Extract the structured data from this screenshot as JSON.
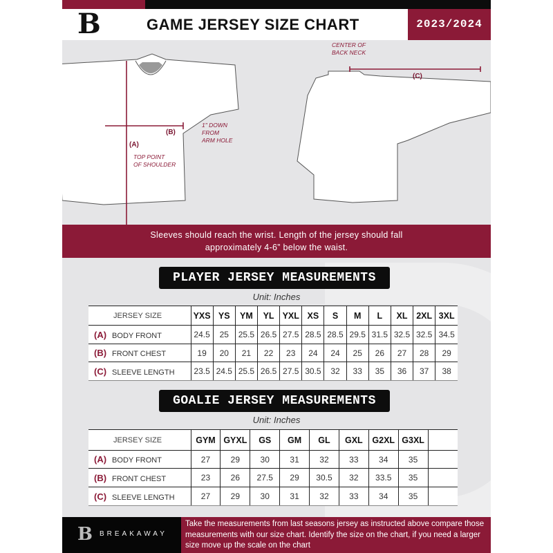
{
  "header": {
    "title": "GAME JERSEY SIZE CHART",
    "season": "2023/2024",
    "logo_letter": "B"
  },
  "diagram": {
    "center_back_neck": "CENTER OF\nBACK NECK",
    "label_a": "(A)",
    "label_b": "(B)",
    "label_c": "(C)",
    "top_point": "TOP POINT\nOF SHOULDER",
    "one_inch": "1\" DOWN\nFROM\nARM HOLE"
  },
  "notice": {
    "line1": "Sleeves should reach the wrist. Length of the jersey should fall",
    "line2": "approximately 4-6” below the waist."
  },
  "player": {
    "title": "PLAYER JERSEY MEASUREMENTS",
    "unit": "Unit: Inches",
    "size_header": "JERSEY SIZE",
    "sizes": [
      "YXS",
      "YS",
      "YM",
      "YL",
      "YXL",
      "XS",
      "S",
      "M",
      "L",
      "XL",
      "2XL",
      "3XL"
    ],
    "rows": [
      {
        "key": "(A)",
        "label": "BODY FRONT",
        "values": [
          "24.5",
          "25",
          "25.5",
          "26.5",
          "27.5",
          "28.5",
          "28.5",
          "29.5",
          "31.5",
          "32.5",
          "32.5",
          "34.5"
        ]
      },
      {
        "key": "(B)",
        "label": "FRONT CHEST",
        "values": [
          "19",
          "20",
          "21",
          "22",
          "23",
          "24",
          "24",
          "25",
          "26",
          "27",
          "28",
          "29"
        ]
      },
      {
        "key": "(C)",
        "label": "SLEEVE LENGTH",
        "values": [
          "23.5",
          "24.5",
          "25.5",
          "26.5",
          "27.5",
          "30.5",
          "32",
          "33",
          "35",
          "36",
          "37",
          "38"
        ]
      }
    ]
  },
  "goalie": {
    "title": "GOALIE JERSEY MEASUREMENTS",
    "unit": "Unit: Inches",
    "size_header": "JERSEY SIZE",
    "sizes": [
      "GYM",
      "GYXL",
      "GS",
      "GM",
      "GL",
      "GXL",
      "G2XL",
      "G3XL",
      ""
    ],
    "rows": [
      {
        "key": "(A)",
        "label": "BODY FRONT",
        "values": [
          "27",
          "29",
          "30",
          "31",
          "32",
          "33",
          "34",
          "35",
          ""
        ]
      },
      {
        "key": "(B)",
        "label": "FRONT CHEST",
        "values": [
          "23",
          "26",
          "27.5",
          "29",
          "30.5",
          "32",
          "33.5",
          "35",
          ""
        ]
      },
      {
        "key": "(C)",
        "label": "SLEEVE LENGTH",
        "values": [
          "27",
          "29",
          "30",
          "31",
          "32",
          "33",
          "34",
          "35",
          ""
        ]
      }
    ]
  },
  "footer": {
    "brand": "BREAKAWAY",
    "logo_letter": "B",
    "text": "Take the measurements from last seasons jersey as instructed above compare those measurements  with our size chart. Identify the size on the chart, if you need a larger size move up the scale on the chart"
  },
  "colors": {
    "accent": "#8b1a37",
    "dark": "#0d0d0d",
    "background": "#e5e5e7"
  }
}
